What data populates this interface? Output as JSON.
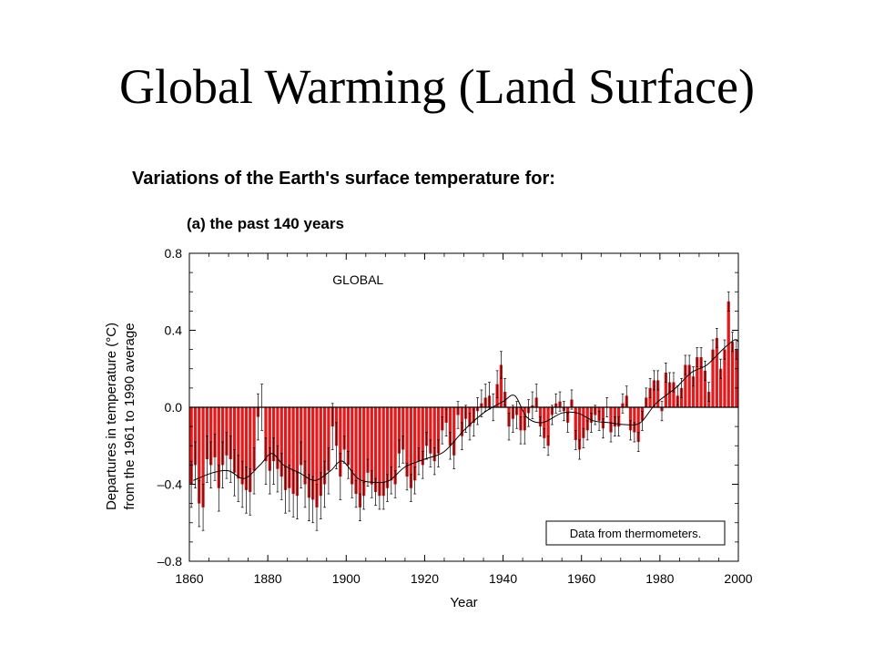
{
  "slide": {
    "title": "Global Warming (Land Surface)",
    "subtitle": "Variations of the Earth's surface temperature for:",
    "panel_label": "(a) the past 140 years"
  },
  "colors": {
    "bar": "#e31a1c",
    "error_bar": "#000000",
    "smooth_line": "#000000"
  },
  "chart_data": {
    "type": "bar",
    "title": "",
    "region_label": "GLOBAL",
    "annotation": "Data from thermometers.",
    "xlabel": "Year",
    "ylabel_line1": "Departures in temperature (°C)",
    "ylabel_line2": "from the 1961 to 1990 average",
    "xlim": [
      1860,
      2000
    ],
    "ylim": [
      -0.8,
      0.8
    ],
    "x_ticks": [
      1860,
      1880,
      1900,
      1920,
      1940,
      1960,
      1980,
      2000
    ],
    "x_tick_labels": [
      "1860",
      "1880",
      "1900",
      "1920",
      "1940",
      "1960",
      "1980",
      "2000"
    ],
    "y_ticks": [
      0.8,
      0.4,
      0.0,
      -0.4,
      -0.8
    ],
    "y_tick_labels": [
      "0.8",
      "0.4",
      "0.0",
      "–0.4",
      "–0.8"
    ],
    "grid": false,
    "first_year": 1861,
    "values": [
      -0.4,
      -0.3,
      -0.5,
      -0.52,
      -0.27,
      -0.3,
      -0.26,
      -0.42,
      -0.3,
      -0.25,
      -0.27,
      -0.34,
      -0.37,
      -0.4,
      -0.43,
      -0.44,
      -0.33,
      -0.05,
      0.0,
      -0.28,
      -0.33,
      -0.28,
      -0.32,
      -0.36,
      -0.43,
      -0.42,
      -0.45,
      -0.46,
      -0.3,
      -0.4,
      -0.47,
      -0.48,
      -0.52,
      -0.46,
      -0.4,
      -0.33,
      -0.1,
      -0.2,
      -0.36,
      -0.22,
      -0.3,
      -0.4,
      -0.45,
      -0.52,
      -0.46,
      -0.34,
      -0.4,
      -0.44,
      -0.46,
      -0.46,
      -0.42,
      -0.38,
      -0.4,
      -0.24,
      -0.22,
      -0.36,
      -0.42,
      -0.38,
      -0.28,
      -0.3,
      -0.2,
      -0.24,
      -0.28,
      -0.24,
      -0.12,
      -0.08,
      -0.2,
      -0.25,
      -0.04,
      -0.15,
      -0.06,
      -0.1,
      -0.08,
      -0.02,
      0.02,
      0.05,
      0.06,
      0.0,
      0.12,
      0.22,
      0.08,
      -0.1,
      -0.06,
      -0.04,
      -0.12,
      -0.12,
      -0.03,
      0.01,
      0.05,
      -0.1,
      -0.16,
      -0.2,
      -0.04,
      0.02,
      0.03,
      -0.02,
      -0.08,
      0.04,
      -0.17,
      -0.22,
      -0.16,
      -0.12,
      -0.08,
      -0.04,
      -0.07,
      -0.11,
      0.0,
      -0.13,
      -0.1,
      -0.1,
      0.02,
      0.06,
      -0.12,
      -0.13,
      -0.18,
      -0.07,
      0.05,
      0.1,
      0.14,
      0.14,
      -0.02,
      0.18,
      0.13,
      0.13,
      0.06,
      0.1,
      0.22,
      0.22,
      0.16,
      0.26,
      0.26,
      0.19,
      0.08,
      0.3,
      0.36,
      0.2,
      0.3,
      0.55,
      0.34,
      0.3
    ],
    "smooth": [
      [
        1861,
        -0.38
      ],
      [
        1866,
        -0.34
      ],
      [
        1870,
        -0.33
      ],
      [
        1874,
        -0.37
      ],
      [
        1878,
        -0.3
      ],
      [
        1881,
        -0.24
      ],
      [
        1884,
        -0.3
      ],
      [
        1888,
        -0.34
      ],
      [
        1892,
        -0.38
      ],
      [
        1896,
        -0.33
      ],
      [
        1899,
        -0.28
      ],
      [
        1903,
        -0.37
      ],
      [
        1907,
        -0.39
      ],
      [
        1911,
        -0.38
      ],
      [
        1915,
        -0.31
      ],
      [
        1920,
        -0.27
      ],
      [
        1925,
        -0.23
      ],
      [
        1930,
        -0.12
      ],
      [
        1935,
        -0.03
      ],
      [
        1940,
        0.03
      ],
      [
        1943,
        0.06
      ],
      [
        1946,
        -0.05
      ],
      [
        1950,
        -0.08
      ],
      [
        1955,
        -0.03
      ],
      [
        1959,
        -0.03
      ],
      [
        1963,
        -0.07
      ],
      [
        1967,
        -0.08
      ],
      [
        1971,
        -0.09
      ],
      [
        1975,
        -0.08
      ],
      [
        1979,
        0.02
      ],
      [
        1984,
        0.1
      ],
      [
        1988,
        0.18
      ],
      [
        1992,
        0.22
      ],
      [
        1996,
        0.3
      ],
      [
        1999,
        0.35
      ],
      [
        2000,
        0.34
      ]
    ]
  }
}
